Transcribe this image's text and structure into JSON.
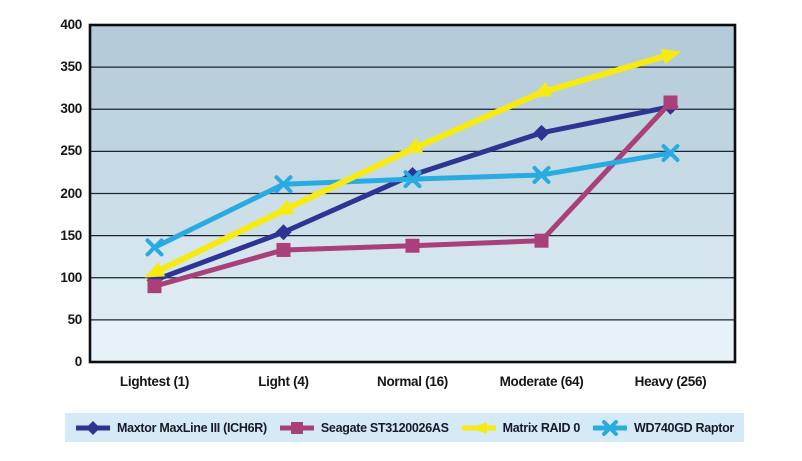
{
  "chart_data": {
    "type": "line",
    "title": "",
    "xlabel": "",
    "ylabel": "",
    "categories": [
      "Lightest (1)",
      "Light (4)",
      "Normal (16)",
      "Moderate (64)",
      "Heavy (256)"
    ],
    "y_ticks": [
      0,
      50,
      100,
      150,
      200,
      250,
      300,
      350,
      400
    ],
    "ylim": [
      0,
      400
    ],
    "grid": "horizontal",
    "legend_position": "bottom",
    "series": [
      {
        "name": "Maxtor MaxLine III (ICH6R)",
        "color": "#2e3492",
        "marker": "diamond",
        "values": [
          97,
          154,
          222,
          272,
          303
        ]
      },
      {
        "name": "Seagate ST3120026AS",
        "color": "#a94079",
        "marker": "square",
        "values": [
          90,
          133,
          138,
          144,
          308
        ]
      },
      {
        "name": "Matrix RAID 0",
        "color": "#f7ea10",
        "marker": "arrow",
        "values": [
          106,
          180,
          253,
          320,
          365
        ]
      },
      {
        "name": "WD740GD Raptor",
        "color": "#29abe2",
        "marker": "x",
        "values": [
          136,
          211,
          217,
          222,
          248
        ]
      }
    ],
    "colors": {
      "plot_band_top": "#b4ccd9",
      "plot_band_bottom": "#e7f2f8",
      "gridline": "#1c2530",
      "axis_border": "#0d0d10",
      "legend_background": "#d4ebf7",
      "label_text": "#15151a",
      "page_background": "#ffffff"
    }
  }
}
